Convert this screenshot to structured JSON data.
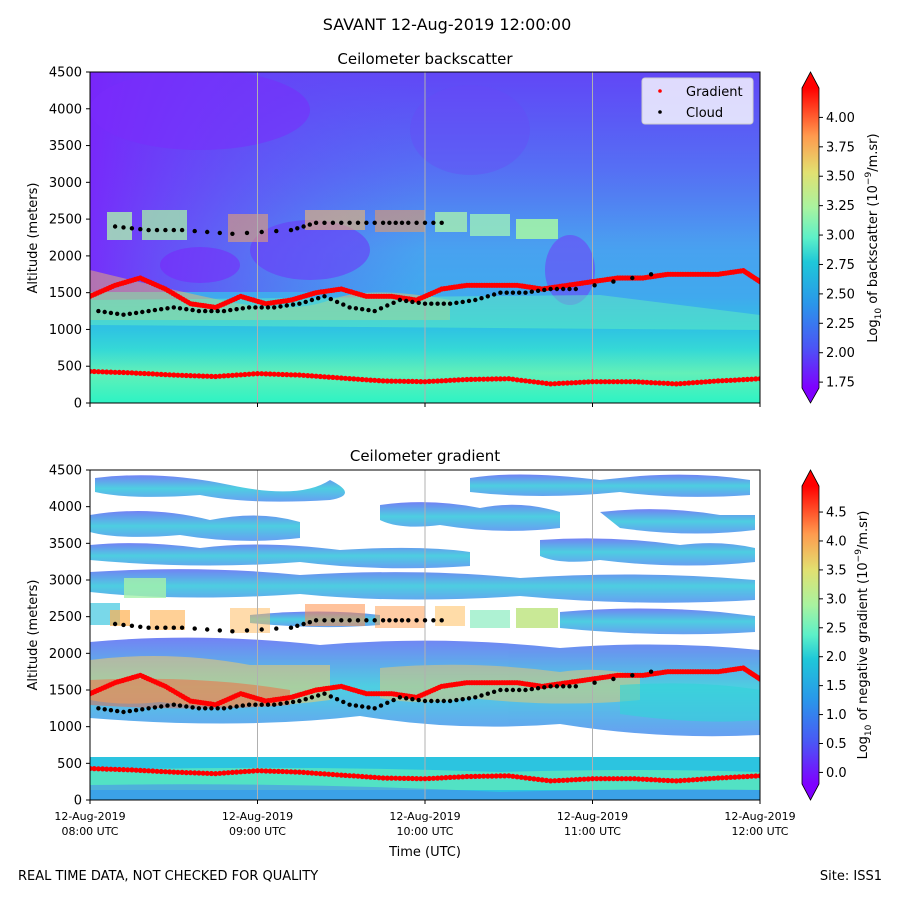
{
  "suptitle": "SAVANT 12-Aug-2019 12:00:00",
  "footer": {
    "left": "REAL TIME DATA, NOT CHECKED FOR QUALITY",
    "right": "Site: ISS1"
  },
  "colors": {
    "gradient_marker": "#ff0000",
    "cloud_marker": "#000000",
    "vertical_gridline": "#b0b0b0",
    "colormap": "rainbow"
  },
  "chart_data": [
    {
      "type": "heatmap",
      "title": "Ceilometer backscatter",
      "xlabel": "",
      "ylabel": "Altitude (meters)",
      "ylim": [
        0,
        4500
      ],
      "yticks": [
        "0",
        "500",
        "1000",
        "1500",
        "2000",
        "2500",
        "3000",
        "3500",
        "4000",
        "4500"
      ],
      "xlim_hours": [
        8,
        12
      ],
      "colorbar": {
        "label_prefix": "Log",
        "label_sub": "10",
        "label_mid": " of backscatter (10",
        "label_sup": "−9",
        "label_suffix": "/m.sr)",
        "range": [
          1.7,
          4.25
        ],
        "ticks": [
          "1.75",
          "2.00",
          "2.25",
          "2.50",
          "2.75",
          "3.00",
          "3.25",
          "3.50",
          "3.75",
          "4.00"
        ]
      },
      "legend": {
        "placement": "top-right",
        "entries": [
          "Gradient",
          "Cloud"
        ]
      },
      "series": [
        {
          "name": "Gradient",
          "hours": [
            8.0,
            8.25,
            8.5,
            8.75,
            9.0,
            9.25,
            9.5,
            9.75,
            10.0,
            10.25,
            10.5,
            10.75,
            11.0,
            11.25,
            11.5,
            11.75,
            12.0
          ],
          "altitude": [
            430,
            410,
            380,
            360,
            400,
            380,
            340,
            300,
            290,
            320,
            330,
            260,
            290,
            290,
            260,
            300,
            330
          ]
        },
        {
          "name": "Gradient",
          "hours": [
            8.0,
            8.15,
            8.3,
            8.45,
            8.6,
            8.75,
            8.9,
            9.05,
            9.2,
            9.35,
            9.5,
            9.65,
            9.8,
            9.95,
            10.1,
            10.25,
            10.4,
            10.55,
            10.7,
            10.85,
            11.0,
            11.15,
            11.3,
            11.45,
            11.6,
            11.75,
            11.9,
            12.0
          ],
          "altitude": [
            1450,
            1600,
            1700,
            1550,
            1350,
            1300,
            1450,
            1350,
            1400,
            1500,
            1550,
            1450,
            1450,
            1400,
            1550,
            1600,
            1600,
            1600,
            1550,
            1600,
            1650,
            1700,
            1700,
            1750,
            1750,
            1750,
            1800,
            1650
          ]
        },
        {
          "name": "Cloud",
          "hours": [
            8.05,
            8.2,
            8.35,
            8.5,
            8.65,
            8.8,
            8.95,
            9.1,
            9.25,
            9.4,
            9.55,
            9.7,
            9.85,
            10.0,
            10.15,
            10.3,
            10.45,
            10.6,
            10.75,
            10.9,
            11.35
          ],
          "altitude": [
            1250,
            1200,
            1250,
            1300,
            1250,
            1250,
            1300,
            1300,
            1350,
            1450,
            1300,
            1250,
            1400,
            1350,
            1350,
            1400,
            1500,
            1500,
            1550,
            1550,
            1750
          ]
        },
        {
          "name": "Cloud",
          "hours": [
            8.15,
            8.35,
            8.55,
            8.85,
            9.2,
            9.35,
            9.55,
            9.75,
            9.9,
            10.1
          ],
          "altitude": [
            2400,
            2350,
            2350,
            2300,
            2350,
            2450,
            2450,
            2450,
            2450,
            2450
          ]
        }
      ]
    },
    {
      "type": "heatmap",
      "title": "Ceilometer gradient",
      "xlabel": "Time (UTC)",
      "ylabel": "Altitude (meters)",
      "ylim": [
        0,
        4500
      ],
      "yticks": [
        "0",
        "500",
        "1000",
        "1500",
        "2000",
        "2500",
        "3000",
        "3500",
        "4000",
        "4500"
      ],
      "xlim_hours": [
        8,
        12
      ],
      "xticks": [
        {
          "date": "12-Aug-2019",
          "time": "08:00 UTC",
          "hours": 8
        },
        {
          "date": "12-Aug-2019",
          "time": "09:00 UTC",
          "hours": 9
        },
        {
          "date": "12-Aug-2019",
          "time": "10:00 UTC",
          "hours": 10
        },
        {
          "date": "12-Aug-2019",
          "time": "11:00 UTC",
          "hours": 11
        },
        {
          "date": "12-Aug-2019",
          "time": "12:00 UTC",
          "hours": 12
        }
      ],
      "colorbar": {
        "label_prefix": "Log",
        "label_sub": "10",
        "label_mid": " of negative gradient (10",
        "label_sup": "−9",
        "label_suffix": "/m.sr)",
        "range": [
          -0.2,
          4.95
        ],
        "ticks": [
          "0.0",
          "0.5",
          "1.0",
          "1.5",
          "2.0",
          "2.5",
          "3.0",
          "3.5",
          "4.0",
          "4.5"
        ]
      },
      "series": [
        {
          "name": "Gradient",
          "hours": [
            8.0,
            8.25,
            8.5,
            8.75,
            9.0,
            9.25,
            9.5,
            9.75,
            10.0,
            10.25,
            10.5,
            10.75,
            11.0,
            11.25,
            11.5,
            11.75,
            12.0
          ],
          "altitude": [
            430,
            410,
            380,
            360,
            400,
            380,
            340,
            300,
            290,
            320,
            330,
            260,
            290,
            290,
            260,
            300,
            330
          ]
        },
        {
          "name": "Gradient",
          "hours": [
            8.0,
            8.15,
            8.3,
            8.45,
            8.6,
            8.75,
            8.9,
            9.05,
            9.2,
            9.35,
            9.5,
            9.65,
            9.8,
            9.95,
            10.1,
            10.25,
            10.4,
            10.55,
            10.7,
            10.85,
            11.0,
            11.15,
            11.3,
            11.45,
            11.6,
            11.75,
            11.9,
            12.0
          ],
          "altitude": [
            1450,
            1600,
            1700,
            1550,
            1350,
            1300,
            1450,
            1350,
            1400,
            1500,
            1550,
            1450,
            1450,
            1400,
            1550,
            1600,
            1600,
            1600,
            1550,
            1600,
            1650,
            1700,
            1700,
            1750,
            1750,
            1750,
            1800,
            1650
          ]
        },
        {
          "name": "Cloud",
          "hours": [
            8.05,
            8.2,
            8.35,
            8.5,
            8.65,
            8.8,
            8.95,
            9.1,
            9.25,
            9.4,
            9.55,
            9.7,
            9.85,
            10.0,
            10.15,
            10.3,
            10.45,
            10.6,
            10.75,
            10.9,
            11.35
          ],
          "altitude": [
            1250,
            1200,
            1250,
            1300,
            1250,
            1250,
            1300,
            1300,
            1350,
            1450,
            1300,
            1250,
            1400,
            1350,
            1350,
            1400,
            1500,
            1500,
            1550,
            1550,
            1750
          ]
        },
        {
          "name": "Cloud",
          "hours": [
            8.15,
            8.35,
            8.55,
            8.85,
            9.2,
            9.35,
            9.55,
            9.75,
            9.9,
            10.1
          ],
          "altitude": [
            2400,
            2350,
            2350,
            2300,
            2350,
            2450,
            2450,
            2450,
            2450,
            2450
          ]
        }
      ]
    }
  ]
}
